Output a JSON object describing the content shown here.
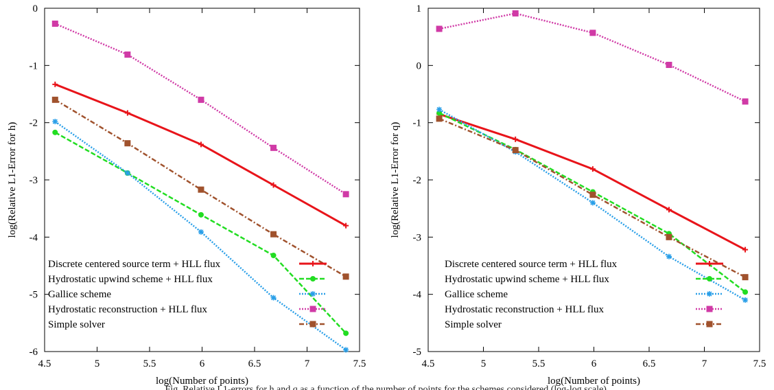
{
  "chart_data": [
    {
      "type": "line",
      "title": "",
      "xlabel": "log(Number of points)",
      "ylabel": "log(Relative L1-Error for h)",
      "xlim": [
        4.5,
        7.5
      ],
      "ylim": [
        -6,
        0
      ],
      "xticks": [
        "4.5",
        "5",
        "5.5",
        "6",
        "6.5",
        "7",
        "7.5"
      ],
      "yticks": [
        "0",
        "-1",
        "-2",
        "-3",
        "-4",
        "-5",
        "-6"
      ],
      "grid": false,
      "legend_position": "bottom-left",
      "series": [
        {
          "name": "Discrete centered source term + HLL flux",
          "color": "#e8141a",
          "style": "solid",
          "marker": "plus",
          "x": [
            4.6,
            5.29,
            5.99,
            6.68,
            7.37
          ],
          "y": [
            -1.33,
            -1.83,
            -2.38,
            -3.09,
            -3.8
          ]
        },
        {
          "name": "Hydrostatic upwind scheme + HLL flux",
          "color": "#22dd22",
          "style": "dashed",
          "marker": "circle",
          "x": [
            4.6,
            5.29,
            5.99,
            6.68,
            7.37
          ],
          "y": [
            -2.17,
            -2.88,
            -3.61,
            -4.32,
            -5.68
          ]
        },
        {
          "name": "Gallice scheme",
          "color": "#2a9fe8",
          "style": "dotted",
          "marker": "asterisk",
          "x": [
            4.6,
            5.29,
            5.99,
            6.68,
            7.37
          ],
          "y": [
            -1.98,
            -2.88,
            -3.91,
            -5.06,
            -5.97
          ]
        },
        {
          "name": "Hydrostatic reconstruction + HLL flux",
          "color": "#d03aa6",
          "style": "dotted",
          "marker": "square",
          "x": [
            4.6,
            5.29,
            5.99,
            6.68,
            7.37
          ],
          "y": [
            -0.27,
            -0.81,
            -1.6,
            -2.44,
            -3.25
          ]
        },
        {
          "name": "Simple solver",
          "color": "#a0522d",
          "style": "dashdot",
          "marker": "filled-square",
          "x": [
            4.6,
            5.29,
            5.99,
            6.68,
            7.37
          ],
          "y": [
            -1.6,
            -2.36,
            -3.17,
            -3.95,
            -4.69
          ]
        }
      ]
    },
    {
      "type": "line",
      "title": "",
      "xlabel": "log(Number of points)",
      "ylabel": "log(Relative L1-Error for q)",
      "xlim": [
        4.5,
        7.5
      ],
      "ylim": [
        -5,
        1
      ],
      "xticks": [
        "4.5",
        "5",
        "5.5",
        "6",
        "6.5",
        "7",
        "7.5"
      ],
      "yticks": [
        "1",
        "0",
        "-1",
        "-2",
        "-3",
        "-4",
        "-5"
      ],
      "grid": false,
      "legend_position": "bottom-left",
      "series": [
        {
          "name": "Discrete centered source term + HLL flux",
          "color": "#e8141a",
          "style": "solid",
          "marker": "plus",
          "x": [
            4.6,
            5.29,
            5.99,
            6.68,
            7.37
          ],
          "y": [
            -0.85,
            -1.29,
            -1.81,
            -2.52,
            -3.22
          ]
        },
        {
          "name": "Hydrostatic upwind scheme + HLL flux",
          "color": "#22dd22",
          "style": "dashed",
          "marker": "circle",
          "x": [
            4.6,
            5.29,
            5.99,
            6.68,
            7.37
          ],
          "y": [
            -0.83,
            -1.47,
            -2.21,
            -2.94,
            -3.96
          ]
        },
        {
          "name": "Gallice scheme",
          "color": "#2a9fe8",
          "style": "dotted",
          "marker": "asterisk",
          "x": [
            4.6,
            5.29,
            5.99,
            6.68,
            7.37
          ],
          "y": [
            -0.77,
            -1.51,
            -2.4,
            -3.34,
            -4.1
          ]
        },
        {
          "name": "Hydrostatic reconstruction + HLL flux",
          "color": "#d03aa6",
          "style": "dotted",
          "marker": "square",
          "x": [
            4.6,
            5.29,
            5.99,
            6.68,
            7.37
          ],
          "y": [
            0.64,
            0.91,
            0.57,
            0.01,
            -0.63
          ]
        },
        {
          "name": "Simple solver",
          "color": "#a0522d",
          "style": "dashdot",
          "marker": "filled-square",
          "x": [
            4.6,
            5.29,
            5.99,
            6.68,
            7.37
          ],
          "y": [
            -0.93,
            -1.48,
            -2.26,
            -3.0,
            -3.7
          ]
        }
      ]
    }
  ]
}
